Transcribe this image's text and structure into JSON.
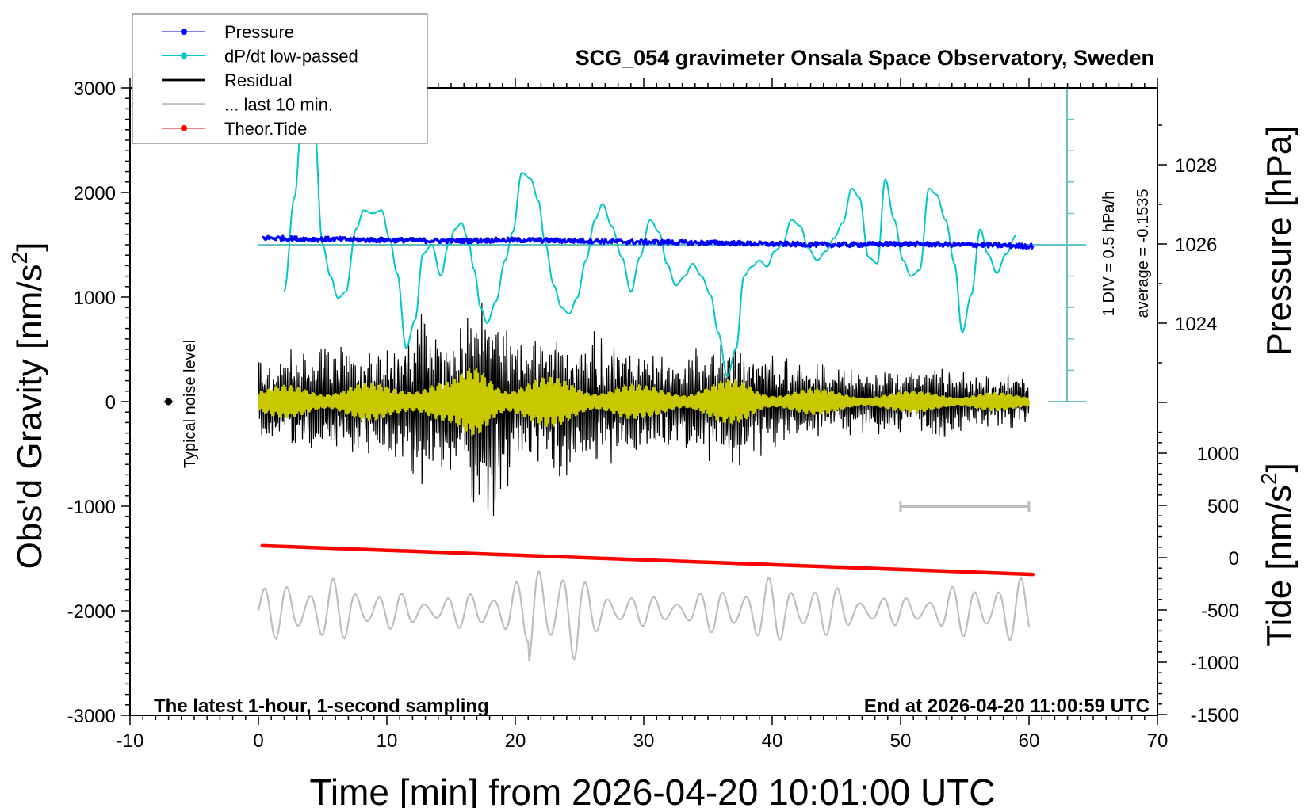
{
  "chart_data": {
    "type": "line",
    "title": "SCG_054 gravimeter Onsala Space Observatory, Sweden",
    "xlabel": "Time [min] from 2026-04-20 10:01:00 UTC",
    "ylabel_left": "Obs'd Gravity [nm/s",
    "ylabel_left_sup": "2",
    "ylabel_left_end": "]",
    "ylabel_right_pressure": "Pressure [hPa]",
    "ylabel_right_tide": "Tide [nm/s",
    "ylabel_right_tide_sup": "2",
    "ylabel_right_tide_end": "]",
    "xlim": [
      -10,
      70
    ],
    "ylim_gravity": [
      -3000,
      3000
    ],
    "xticks": [
      "-10",
      "0",
      "10",
      "20",
      "30",
      "40",
      "50",
      "60",
      "70"
    ],
    "xtick_values": [
      -10,
      0,
      10,
      20,
      30,
      40,
      50,
      60,
      70
    ],
    "yticks_gravity": [
      "3000",
      "2000",
      "1000",
      "0",
      "-1000",
      "-2000",
      "-3000"
    ],
    "ytick_values_gravity": [
      3000,
      2000,
      1000,
      0,
      -1000,
      -2000,
      -3000
    ],
    "yticks_pressure": [
      "1028",
      "1026",
      "1024"
    ],
    "ytick_values_pressure": [
      1028,
      1026,
      1024
    ],
    "pressure_ylim": [
      1021.9,
      1029.9
    ],
    "yticks_tide": [
      "1000",
      "500",
      "0",
      "-500",
      "-1000",
      "-1500"
    ],
    "ytick_values_tide": [
      1000,
      500,
      0,
      -500,
      -1000,
      -1500
    ],
    "tide_ylim": [
      -1500,
      1000
    ],
    "dpdt_scale_label": "1 DIV = 0.5 hPa/h",
    "dpdt_average_label": "average = -0.1535",
    "dpdt_divisions": 10,
    "noise_label": "Typical noise level",
    "caption_left": "The latest 1-hour, 1-second sampling",
    "caption_right": "End at 2026-04-20 11:00:59 UTC",
    "legend": {
      "placement": "top-left",
      "entries": [
        {
          "label": "Pressure",
          "color": "#0000ff",
          "marker": true
        },
        {
          "label": "dP/dt low-passed",
          "color": "#00c8c8",
          "marker": true
        },
        {
          "label": "Residual",
          "color": "#000000",
          "marker": false
        },
        {
          "label": "... last 10 min.",
          "color": "#bebebe",
          "marker": false
        },
        {
          "label": "Theor.Tide",
          "color": "#ff0000",
          "marker": true
        }
      ]
    },
    "colors": {
      "pressure": "#0000ff",
      "dpdt": "#00c8c8",
      "dpdt_axis": "#66c2c2",
      "residual": "#000000",
      "residual_filtered": "#c8c800",
      "last10": "#bebebe",
      "tide": "#ff0000"
    },
    "series": [
      {
        "name": "Pressure",
        "unit": "hPa",
        "x": [
          0.3,
          5,
          10,
          15,
          20,
          25,
          30,
          35,
          40,
          45,
          50,
          55,
          60.3
        ],
        "values": [
          1026.15,
          1026.12,
          1026.1,
          1026.08,
          1026.1,
          1026.08,
          1026.05,
          1026.03,
          1026.0,
          1025.98,
          1026.0,
          1025.98,
          1025.95
        ]
      },
      {
        "name": "dP/dt low-passed",
        "unit": "DIV (0.5 hPa/h)",
        "x": [
          2,
          2.8,
          3.5,
          4.2,
          5,
          5.6,
          6.2,
          6.8,
          7.6,
          8.2,
          8.9,
          9.6,
          10.2,
          10.8,
          11.5,
          12.2,
          12.8,
          13.5,
          14.2,
          14.8,
          15.3,
          15.8,
          16.3,
          16.8,
          17.3,
          17.8,
          18.5,
          19.2,
          19.8,
          20.5,
          21.2,
          21.8,
          22.3,
          23.0,
          23.6,
          24.2,
          24.8,
          25.5,
          26.2,
          26.8,
          27.5,
          28.3,
          29.0,
          29.7,
          30.5,
          31.2,
          31.8,
          32.5,
          33.2,
          33.8,
          34.5,
          35.2,
          35.8,
          36.5,
          37.2,
          37.8,
          38.4,
          39.0,
          39.6,
          40.2,
          40.8,
          41.5,
          42.2,
          42.8,
          43.5,
          44.2,
          44.8,
          45.5,
          46.2,
          46.8,
          47.5,
          48.2,
          48.8,
          49.5,
          50.2,
          50.8,
          51.5,
          52.2,
          52.8,
          53.5,
          54.2,
          54.8,
          55.5,
          56.2,
          56.8,
          57.5,
          58.2,
          59.0
        ],
        "values": [
          -1.5,
          1.5,
          4.8,
          5.0,
          0.0,
          -1.0,
          -1.7,
          -1.5,
          0.5,
          1.1,
          1.0,
          1.1,
          0.2,
          -0.9,
          -3.3,
          -2.4,
          -0.3,
          0.0,
          -1.0,
          0.0,
          0.5,
          0.7,
          0.2,
          -0.8,
          -2.0,
          -2.5,
          -1.8,
          -0.5,
          0.4,
          2.3,
          2.1,
          1.4,
          0.1,
          -1.3,
          -2.0,
          -2.2,
          -1.7,
          -0.5,
          0.8,
          1.3,
          0.6,
          -0.4,
          -1.5,
          -0.4,
          0.8,
          0.4,
          -0.6,
          -1.3,
          -1.0,
          -0.6,
          -1.0,
          -1.6,
          -2.8,
          -4.2,
          -3.3,
          -1.0,
          -0.7,
          -0.5,
          -0.7,
          -0.2,
          0.0,
          0.8,
          0.6,
          -0.1,
          -0.5,
          -0.2,
          0.2,
          0.7,
          1.8,
          1.5,
          -0.4,
          -0.6,
          2.1,
          0.8,
          -0.5,
          -1.0,
          -0.8,
          1.8,
          1.6,
          0.8,
          -0.6,
          -2.8,
          -1.6,
          0.5,
          -0.3,
          -0.9,
          -0.3,
          0.3
        ]
      },
      {
        "name": "Residual",
        "unit": "nm/s2",
        "envelope_x": [
          0,
          5,
          10,
          13,
          15,
          17.5,
          20,
          22,
          25,
          28,
          30,
          33,
          35,
          37.5,
          40,
          45,
          50,
          53.5,
          55,
          60
        ],
        "envelope_values": [
          350,
          500,
          450,
          750,
          550,
          1050,
          650,
          600,
          600,
          500,
          400,
          450,
          500,
          550,
          400,
          300,
          250,
          350,
          250,
          200
        ]
      },
      {
        "name": "... last 10 min.",
        "unit": "nm/s2",
        "center": -2000,
        "x_window": [
          50,
          60
        ]
      },
      {
        "name": "Theor.Tide",
        "unit": "nm/s2",
        "x": [
          0.3,
          60.3
        ],
        "values": [
          115,
          -160
        ]
      }
    ],
    "typical_noise": {
      "x": -7,
      "value": 0
    },
    "last10_bar": {
      "x": [
        50,
        60
      ],
      "value_gravity": -1000
    }
  }
}
